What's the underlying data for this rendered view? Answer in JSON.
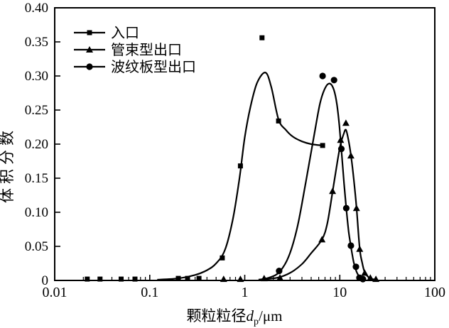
{
  "figure": {
    "background": "#ffffff",
    "ink": "#000000"
  },
  "chart_data": {
    "type": "line",
    "title": "",
    "xlabel": "颗粒粒径dp/μm",
    "xlabel_parts": {
      "prefix": "颗粒粒径",
      "symbol": "d",
      "subscript": "p",
      "suffix": "/μm"
    },
    "ylabel": "体积分数",
    "x_scale": "log",
    "xlim": [
      0.01,
      100
    ],
    "ylim": [
      0,
      0.4
    ],
    "grid": false,
    "legend_position": "upper-left",
    "x_ticks": [
      {
        "v": 0.01,
        "label": "0.01"
      },
      {
        "v": 0.1,
        "label": "0.1"
      },
      {
        "v": 1,
        "label": "1"
      },
      {
        "v": 10,
        "label": "10"
      },
      {
        "v": 100,
        "label": "100"
      }
    ],
    "x_minor_ticks": true,
    "y_ticks": [
      {
        "v": 0.0,
        "label": "0"
      },
      {
        "v": 0.05,
        "label": "0.05"
      },
      {
        "v": 0.1,
        "label": "0.10"
      },
      {
        "v": 0.15,
        "label": "0.15"
      },
      {
        "v": 0.2,
        "label": "0.20"
      },
      {
        "v": 0.25,
        "label": "0.25"
      },
      {
        "v": 0.3,
        "label": "0.30"
      },
      {
        "v": 0.35,
        "label": "0.35"
      },
      {
        "v": 0.4,
        "label": "0.40"
      }
    ],
    "series": [
      {
        "key": "inlet",
        "name": "入口",
        "marker": "square",
        "color": "#000000",
        "points": [
          [
            0.022,
            0.002
          ],
          [
            0.03,
            0.002
          ],
          [
            0.05,
            0.002
          ],
          [
            0.07,
            0.002
          ],
          [
            0.2,
            0.003
          ],
          [
            0.25,
            0.003
          ],
          [
            0.33,
            0.003
          ],
          [
            0.58,
            0.033
          ],
          [
            0.9,
            0.168
          ],
          [
            1.52,
            0.356
          ],
          [
            2.27,
            0.234
          ],
          [
            6.6,
            0.198
          ]
        ],
        "curve": [
          [
            0.12,
            0.001
          ],
          [
            0.2,
            0.003
          ],
          [
            0.3,
            0.008
          ],
          [
            0.4,
            0.015
          ],
          [
            0.5,
            0.025
          ],
          [
            0.62,
            0.045
          ],
          [
            0.75,
            0.09
          ],
          [
            0.88,
            0.15
          ],
          [
            1.0,
            0.21
          ],
          [
            1.15,
            0.255
          ],
          [
            1.35,
            0.29
          ],
          [
            1.65,
            0.305
          ],
          [
            1.9,
            0.284
          ],
          [
            2.27,
            0.236
          ],
          [
            2.7,
            0.221
          ],
          [
            3.2,
            0.211
          ],
          [
            4.0,
            0.204
          ],
          [
            5.0,
            0.2
          ],
          [
            6.6,
            0.198
          ]
        ]
      },
      {
        "key": "tube-bundle-outlet",
        "name": "管束型出口",
        "marker": "triangle",
        "color": "#000000",
        "points": [
          [
            0.6,
            0.002
          ],
          [
            0.9,
            0.002
          ],
          [
            1.6,
            0.003
          ],
          [
            2.35,
            0.004
          ],
          [
            6.5,
            0.06
          ],
          [
            8.4,
            0.131
          ],
          [
            10.2,
            0.206
          ],
          [
            11.6,
            0.231
          ],
          [
            13.1,
            0.183
          ],
          [
            15.0,
            0.106
          ],
          [
            16.2,
            0.046
          ],
          [
            18.3,
            0.011
          ],
          [
            21,
            0.004
          ],
          [
            24,
            0.002
          ]
        ],
        "curve": [
          [
            1.4,
            0.001
          ],
          [
            2.2,
            0.004
          ],
          [
            3.0,
            0.011
          ],
          [
            4.0,
            0.024
          ],
          [
            5.0,
            0.04
          ],
          [
            6.5,
            0.06
          ],
          [
            7.4,
            0.084
          ],
          [
            8.4,
            0.13
          ],
          [
            9.4,
            0.173
          ],
          [
            10.2,
            0.2
          ],
          [
            11.0,
            0.215
          ],
          [
            11.6,
            0.221
          ],
          [
            12.3,
            0.207
          ],
          [
            13.1,
            0.184
          ],
          [
            14.0,
            0.15
          ],
          [
            15.0,
            0.107
          ],
          [
            16.2,
            0.047
          ],
          [
            17.2,
            0.026
          ],
          [
            18.3,
            0.012
          ],
          [
            20,
            0.005
          ],
          [
            22,
            0.002
          ],
          [
            25,
            0.001
          ]
        ]
      },
      {
        "key": "corrugated-plate-outlet",
        "name": "波纹板型出口",
        "marker": "circle",
        "color": "#000000",
        "points": [
          [
            2.3,
            0.014
          ],
          [
            6.6,
            0.3
          ],
          [
            8.7,
            0.294
          ],
          [
            10.4,
            0.193
          ],
          [
            11.7,
            0.106
          ],
          [
            13.1,
            0.051
          ],
          [
            14.8,
            0.02
          ],
          [
            16.1,
            0.004
          ],
          [
            17.5,
            0.002
          ]
        ],
        "curve": [
          [
            1.4,
            0.001
          ],
          [
            1.8,
            0.004
          ],
          [
            2.3,
            0.012
          ],
          [
            2.9,
            0.035
          ],
          [
            3.6,
            0.08
          ],
          [
            4.4,
            0.145
          ],
          [
            5.4,
            0.215
          ],
          [
            6.2,
            0.26
          ],
          [
            7.0,
            0.282
          ],
          [
            7.8,
            0.289
          ],
          [
            8.6,
            0.281
          ],
          [
            9.3,
            0.26
          ],
          [
            9.9,
            0.227
          ],
          [
            10.5,
            0.184
          ],
          [
            11.1,
            0.142
          ],
          [
            11.7,
            0.106
          ],
          [
            12.4,
            0.072
          ],
          [
            13.1,
            0.05
          ],
          [
            14.0,
            0.027
          ],
          [
            15.0,
            0.013
          ],
          [
            16.0,
            0.006
          ],
          [
            17.5,
            0.002
          ],
          [
            19.0,
            0.001
          ]
        ]
      }
    ]
  }
}
